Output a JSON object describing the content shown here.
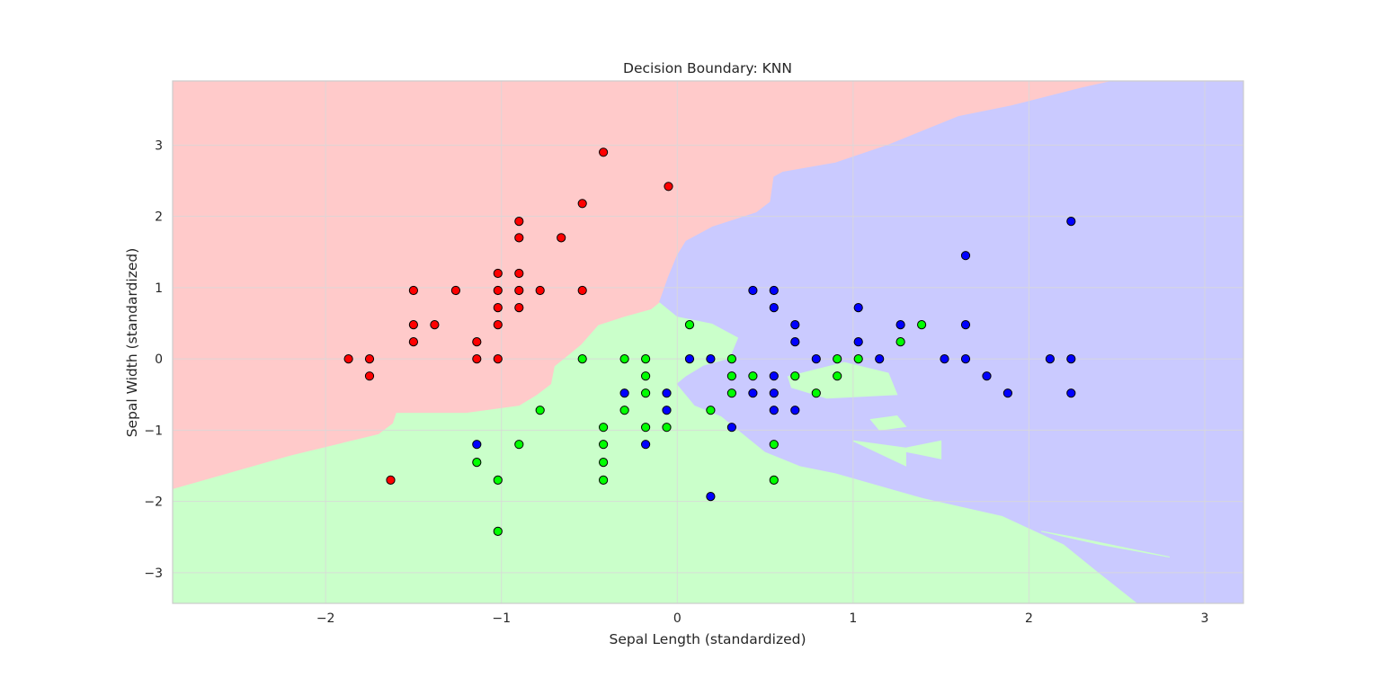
{
  "chart_data": {
    "type": "scatter",
    "title": "Decision Boundary: KNN",
    "xlabel": "Sepal Length (standardized)",
    "ylabel": "Sepal Width (standardized)",
    "xlim": [
      -2.87,
      3.22
    ],
    "ylim": [
      -3.43,
      3.9
    ],
    "xticks": [
      -2,
      -1,
      0,
      1,
      2,
      3
    ],
    "yticks": [
      -3,
      -2,
      -1,
      0,
      1,
      2,
      3
    ],
    "grid": true,
    "colors": {
      "red_region": "#ffcaca",
      "green_region": "#caffca",
      "blue_region": "#cacaff",
      "red_point": "#ff0000",
      "green_point": "#00ff00",
      "blue_point": "#0000ff",
      "point_edge": "#000000",
      "grid": "#d9d9d9",
      "spine": "#cccccc"
    },
    "regions": [
      {
        "class": "red",
        "polygon": [
          [
            -2.87,
            3.9
          ],
          [
            2.48,
            3.9
          ],
          [
            2.3,
            3.8
          ],
          [
            1.9,
            3.55
          ],
          [
            1.6,
            3.4
          ],
          [
            1.2,
            3.0
          ],
          [
            0.9,
            2.75
          ],
          [
            0.6,
            2.62
          ],
          [
            0.55,
            2.55
          ],
          [
            0.53,
            2.2
          ],
          [
            0.45,
            2.05
          ],
          [
            0.2,
            1.85
          ],
          [
            0.05,
            1.65
          ],
          [
            0.0,
            1.45
          ],
          [
            -0.05,
            1.15
          ],
          [
            -0.1,
            0.8
          ],
          [
            -0.15,
            0.7
          ],
          [
            -0.3,
            0.6
          ],
          [
            -0.45,
            0.48
          ],
          [
            -0.55,
            0.2
          ],
          [
            -0.7,
            -0.1
          ],
          [
            -0.72,
            -0.35
          ],
          [
            -0.8,
            -0.5
          ],
          [
            -0.9,
            -0.65
          ],
          [
            -1.2,
            -0.75
          ],
          [
            -1.6,
            -0.75
          ],
          [
            -1.62,
            -0.9
          ],
          [
            -1.7,
            -1.05
          ],
          [
            -2.2,
            -1.35
          ],
          [
            -2.87,
            -1.82
          ]
        ]
      },
      {
        "class": "blue",
        "polygon": [
          [
            2.48,
            3.9
          ],
          [
            3.22,
            3.9
          ],
          [
            3.22,
            -3.43
          ],
          [
            2.62,
            -3.43
          ],
          [
            2.4,
            -3.0
          ],
          [
            2.2,
            -2.6
          ],
          [
            1.85,
            -2.2
          ],
          [
            1.4,
            -1.95
          ],
          [
            0.9,
            -1.6
          ],
          [
            0.7,
            -1.5
          ],
          [
            0.5,
            -1.3
          ],
          [
            0.35,
            -1.0
          ],
          [
            0.25,
            -0.8
          ],
          [
            0.1,
            -0.65
          ],
          [
            0.0,
            -0.35
          ],
          [
            0.05,
            -0.25
          ],
          [
            0.15,
            -0.1
          ],
          [
            0.3,
            0.0
          ],
          [
            0.35,
            0.3
          ],
          [
            0.2,
            0.5
          ],
          [
            0.0,
            0.6
          ],
          [
            -0.1,
            0.8
          ],
          [
            -0.05,
            1.15
          ],
          [
            0.0,
            1.45
          ],
          [
            0.05,
            1.65
          ],
          [
            0.2,
            1.85
          ],
          [
            0.45,
            2.05
          ],
          [
            0.53,
            2.2
          ],
          [
            0.55,
            2.55
          ],
          [
            0.6,
            2.62
          ],
          [
            0.9,
            2.75
          ],
          [
            1.2,
            3.0
          ],
          [
            1.6,
            3.4
          ],
          [
            1.9,
            3.55
          ],
          [
            2.3,
            3.8
          ]
        ]
      }
    ],
    "islands": [
      {
        "class": "green",
        "polygon": [
          [
            0.63,
            -0.25
          ],
          [
            0.95,
            -0.05
          ],
          [
            1.2,
            -0.2
          ],
          [
            1.25,
            -0.5
          ],
          [
            0.85,
            -0.55
          ],
          [
            0.65,
            -0.4
          ]
        ]
      },
      {
        "class": "green",
        "polygon": [
          [
            1.1,
            -0.85
          ],
          [
            1.25,
            -0.8
          ],
          [
            1.3,
            -0.95
          ],
          [
            1.15,
            -1.0
          ]
        ]
      },
      {
        "class": "green",
        "polygon": [
          [
            1.0,
            -1.15
          ],
          [
            1.3,
            -1.25
          ],
          [
            1.5,
            -1.15
          ],
          [
            1.5,
            -1.4
          ],
          [
            1.3,
            -1.3
          ],
          [
            1.3,
            -1.5
          ]
        ]
      },
      {
        "class": "green",
        "polygon": [
          [
            2.07,
            -2.42
          ],
          [
            2.25,
            -2.5
          ],
          [
            2.8,
            -2.78
          ],
          [
            2.4,
            -2.6
          ]
        ]
      }
    ],
    "series": [
      {
        "class": "red",
        "points": [
          [
            -0.42,
            2.9
          ],
          [
            -0.05,
            2.42
          ],
          [
            -0.54,
            2.18
          ],
          [
            -0.9,
            1.93
          ],
          [
            -0.9,
            1.7
          ],
          [
            -0.66,
            1.7
          ],
          [
            -1.02,
            1.2
          ],
          [
            -0.9,
            1.2
          ],
          [
            -1.5,
            0.96
          ],
          [
            -1.26,
            0.96
          ],
          [
            -1.02,
            0.96
          ],
          [
            -0.9,
            0.96
          ],
          [
            -0.78,
            0.96
          ],
          [
            -0.54,
            0.96
          ],
          [
            -1.02,
            0.72
          ],
          [
            -0.9,
            0.72
          ],
          [
            -1.5,
            0.48
          ],
          [
            -1.38,
            0.48
          ],
          [
            -1.02,
            0.48
          ],
          [
            -1.5,
            0.24
          ],
          [
            -1.14,
            0.24
          ],
          [
            -1.87,
            0.0
          ],
          [
            -1.75,
            0.0
          ],
          [
            -1.14,
            0.0
          ],
          [
            -1.02,
            0.0
          ],
          [
            -1.75,
            -0.24
          ],
          [
            -1.63,
            -1.7
          ]
        ]
      },
      {
        "class": "green",
        "points": [
          [
            0.07,
            0.48
          ],
          [
            1.39,
            0.48
          ],
          [
            1.27,
            0.24
          ],
          [
            -0.54,
            0.0
          ],
          [
            -0.3,
            0.0
          ],
          [
            -0.18,
            0.0
          ],
          [
            0.31,
            0.0
          ],
          [
            0.91,
            0.0
          ],
          [
            1.03,
            0.0
          ],
          [
            -0.18,
            -0.24
          ],
          [
            0.31,
            -0.24
          ],
          [
            0.43,
            -0.24
          ],
          [
            0.67,
            -0.24
          ],
          [
            0.91,
            -0.24
          ],
          [
            -0.18,
            -0.48
          ],
          [
            0.31,
            -0.48
          ],
          [
            0.79,
            -0.48
          ],
          [
            -0.78,
            -0.72
          ],
          [
            -0.3,
            -0.72
          ],
          [
            0.19,
            -0.72
          ],
          [
            -0.42,
            -0.96
          ],
          [
            -0.18,
            -0.96
          ],
          [
            -0.06,
            -0.96
          ],
          [
            -0.9,
            -1.2
          ],
          [
            -0.42,
            -1.2
          ],
          [
            0.55,
            -1.2
          ],
          [
            -1.14,
            -1.45
          ],
          [
            -0.42,
            -1.45
          ],
          [
            -1.02,
            -1.7
          ],
          [
            -0.42,
            -1.7
          ],
          [
            0.55,
            -1.7
          ],
          [
            -1.02,
            -2.42
          ]
        ]
      },
      {
        "class": "blue",
        "points": [
          [
            2.24,
            1.93
          ],
          [
            1.64,
            1.45
          ],
          [
            0.43,
            0.96
          ],
          [
            0.55,
            0.96
          ],
          [
            0.55,
            0.72
          ],
          [
            1.03,
            0.72
          ],
          [
            0.67,
            0.48
          ],
          [
            1.27,
            0.48
          ],
          [
            1.64,
            0.48
          ],
          [
            0.67,
            0.24
          ],
          [
            1.03,
            0.24
          ],
          [
            0.07,
            0.0
          ],
          [
            0.19,
            0.0
          ],
          [
            0.79,
            0.0
          ],
          [
            1.15,
            0.0
          ],
          [
            1.52,
            0.0
          ],
          [
            1.64,
            0.0
          ],
          [
            2.12,
            0.0
          ],
          [
            2.24,
            0.0
          ],
          [
            0.55,
            -0.24
          ],
          [
            1.76,
            -0.24
          ],
          [
            -0.3,
            -0.48
          ],
          [
            -0.06,
            -0.48
          ],
          [
            0.43,
            -0.48
          ],
          [
            0.55,
            -0.48
          ],
          [
            1.88,
            -0.48
          ],
          [
            2.24,
            -0.48
          ],
          [
            -0.06,
            -0.72
          ],
          [
            0.55,
            -0.72
          ],
          [
            0.67,
            -0.72
          ],
          [
            0.31,
            -0.96
          ],
          [
            -1.14,
            -1.2
          ],
          [
            -0.18,
            -1.2
          ],
          [
            0.19,
            -1.93
          ]
        ]
      }
    ]
  }
}
